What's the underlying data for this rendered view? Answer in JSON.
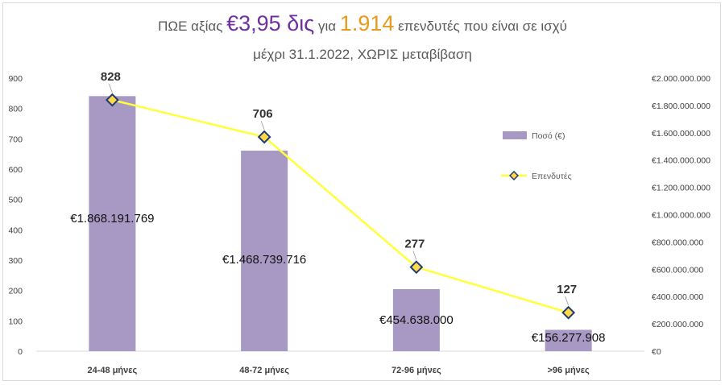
{
  "title": {
    "p1": "ΠΩΕ αξίας ",
    "amount": "€3,95 δις",
    "p2": " για ",
    "count": "1.914",
    "p3": " επενδυτές που είναι σε ισχύ"
  },
  "subtitle": "μέχρι 31.1.2022, ΧΩΡΙΣ μεταβίβαση",
  "colors": {
    "bar": "#a899c4",
    "line": "#ffff3b",
    "marker_fill": "#ffd84a",
    "marker_edge": "#1f3b73",
    "amount_text": "#7030a0",
    "count_text": "#e69a1e"
  },
  "chart_data": {
    "type": "bar",
    "categories": [
      "24-48 μήνες",
      "48-72 μήνες",
      "72-96 μήνες",
      ">96 μήνες"
    ],
    "series": [
      {
        "name": "Ποσό (€)",
        "type": "bar",
        "axis": "right",
        "values": [
          1868191769,
          1468739716,
          454638000,
          156277908
        ],
        "labels": [
          "€1.868.191.769",
          "€1.468.739.716",
          "€454.638.000",
          "€156.277.908"
        ]
      },
      {
        "name": "Επενδυτές",
        "type": "line",
        "axis": "left",
        "marker": "diamond",
        "values": [
          828,
          706,
          277,
          127
        ],
        "labels": [
          "828",
          "706",
          "277",
          "127"
        ]
      }
    ],
    "y_left": {
      "ylim": [
        0,
        900
      ],
      "ticks": [
        "0",
        "100",
        "200",
        "300",
        "400",
        "500",
        "600",
        "700",
        "800",
        "900"
      ]
    },
    "y_right": {
      "ylim": [
        0,
        2000000000
      ],
      "ticks": [
        "€0",
        "€200.000.000",
        "€400.000.000",
        "€600.000.000",
        "€800.000.000",
        "€1.000.000.000",
        "€1.200.000.000",
        "€1.400.000.000",
        "€1.600.000.000",
        "€1.800.000.000",
        "€2.000.000.000"
      ]
    },
    "legend_position": "right",
    "grid": false
  }
}
